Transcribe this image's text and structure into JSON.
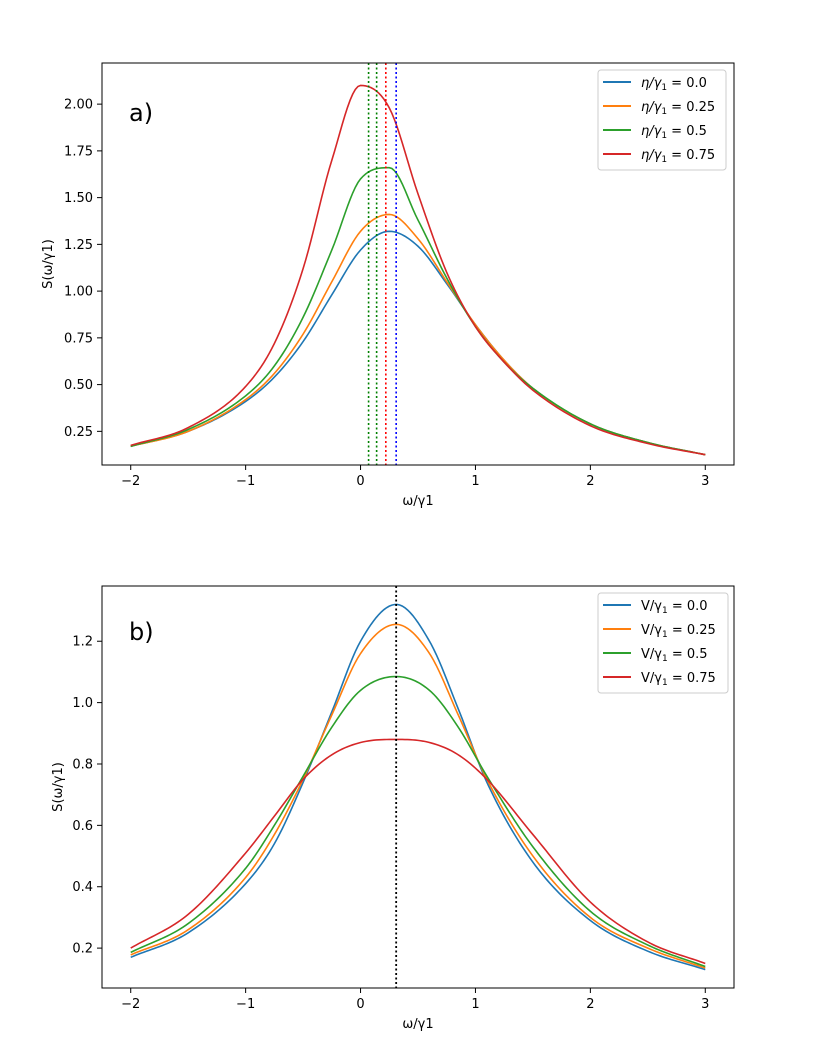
{
  "chart_data": [
    {
      "type": "line",
      "panel_label": "a)",
      "xlabel": "ω/γ1",
      "ylabel": "S(ω/γ1)",
      "xlim": [
        -2.25,
        3.25
      ],
      "ylim": [
        0.07,
        2.22
      ],
      "xticks": [
        -2,
        -1,
        0,
        1,
        2,
        3
      ],
      "xtick_labels": [
        "−2",
        "−1",
        "0",
        "1",
        "2",
        "3"
      ],
      "yticks": [
        0.25,
        0.5,
        0.75,
        1.0,
        1.25,
        1.5,
        1.75,
        2.0
      ],
      "ytick_labels": [
        "0.25",
        "0.50",
        "0.75",
        "1.00",
        "1.25",
        "1.50",
        "1.75",
        "2.00"
      ],
      "legend_position": "top-right",
      "series": [
        {
          "name_sym": "η/γ",
          "name_sub": "1",
          "name_val": " = 0.0",
          "color": "#1f77b4",
          "vline_color": "#0000ff",
          "peak_x": 0.31,
          "x": [
            -2,
            -1.5,
            -1,
            -0.75,
            -0.5,
            -0.25,
            0,
            0.25,
            0.5,
            0.75,
            1,
            1.25,
            1.5,
            2,
            2.5,
            3
          ],
          "y": [
            0.17,
            0.25,
            0.41,
            0.54,
            0.73,
            0.98,
            1.22,
            1.32,
            1.24,
            1.04,
            0.82,
            0.63,
            0.48,
            0.29,
            0.19,
            0.125
          ]
        },
        {
          "name_sym": "η/γ",
          "name_sub": "1",
          "name_val": " = 0.25",
          "color": "#ff7f0e",
          "vline_color": "#ff0000",
          "peak_x": 0.22,
          "x": [
            -2,
            -1.5,
            -1,
            -0.75,
            -0.5,
            -0.25,
            0,
            0.25,
            0.5,
            0.75,
            1,
            1.25,
            1.5,
            2,
            2.5,
            3
          ],
          "y": [
            0.17,
            0.25,
            0.42,
            0.56,
            0.77,
            1.05,
            1.32,
            1.41,
            1.28,
            1.05,
            0.82,
            0.63,
            0.48,
            0.29,
            0.19,
            0.125
          ]
        },
        {
          "name_sym": "η/γ",
          "name_sub": "1",
          "name_val": " = 0.5",
          "color": "#2ca02c",
          "vline_color": "#008000",
          "peak_x": 0.14,
          "x": [
            -2,
            -1.5,
            -1,
            -0.75,
            -0.5,
            -0.25,
            0,
            0.25,
            0.5,
            0.75,
            1,
            1.25,
            1.5,
            2,
            2.5,
            3
          ],
          "y": [
            0.17,
            0.26,
            0.44,
            0.6,
            0.86,
            1.22,
            1.6,
            1.66,
            1.38,
            1.07,
            0.81,
            0.62,
            0.48,
            0.29,
            0.19,
            0.125
          ]
        },
        {
          "name_sym": "η/γ",
          "name_sub": "1",
          "name_val": " = 0.75",
          "color": "#d62728",
          "vline_color": "#008000",
          "peak_x": 0.07,
          "x": [
            -2,
            -1.5,
            -1,
            -0.75,
            -0.5,
            -0.25,
            0,
            0.25,
            0.5,
            0.75,
            1,
            1.25,
            1.5,
            2,
            2.5,
            3
          ],
          "y": [
            0.175,
            0.27,
            0.49,
            0.72,
            1.12,
            1.7,
            2.1,
            1.98,
            1.52,
            1.1,
            0.81,
            0.62,
            0.47,
            0.28,
            0.185,
            0.125
          ]
        }
      ]
    },
    {
      "type": "line",
      "panel_label": "b)",
      "xlabel": "ω/γ1",
      "ylabel": "S(ω/γ1)",
      "xlim": [
        -2.25,
        3.25
      ],
      "ylim": [
        0.07,
        1.38
      ],
      "xticks": [
        -2,
        -1,
        0,
        1,
        2,
        3
      ],
      "xtick_labels": [
        "−2",
        "−1",
        "0",
        "1",
        "2",
        "3"
      ],
      "yticks": [
        0.2,
        0.4,
        0.6,
        0.8,
        1.0,
        1.2
      ],
      "ytick_labels": [
        "0.2",
        "0.4",
        "0.6",
        "0.8",
        "1.0",
        "1.2"
      ],
      "legend_position": "top-right",
      "vline_x": 0.31,
      "vline_color": "#000000",
      "series": [
        {
          "name_sym": "V/γ",
          "name_sub": "1",
          "name_val": " = 0.0",
          "color": "#1f77b4",
          "x": [
            -2,
            -1.5,
            -1,
            -0.75,
            -0.5,
            -0.25,
            0,
            0.31,
            0.6,
            0.85,
            1.1,
            1.5,
            2,
            2.5,
            3
          ],
          "y": [
            0.17,
            0.25,
            0.41,
            0.54,
            0.74,
            0.97,
            1.2,
            1.32,
            1.2,
            0.98,
            0.74,
            0.48,
            0.29,
            0.19,
            0.13
          ]
        },
        {
          "name_sym": "V/γ",
          "name_sub": "1",
          "name_val": " = 0.25",
          "color": "#ff7f0e",
          "x": [
            -2,
            -1.5,
            -1,
            -0.75,
            -0.5,
            -0.25,
            0,
            0.31,
            0.6,
            0.85,
            1.1,
            1.5,
            2,
            2.5,
            3
          ],
          "y": [
            0.178,
            0.26,
            0.43,
            0.57,
            0.75,
            0.96,
            1.16,
            1.255,
            1.16,
            0.96,
            0.75,
            0.5,
            0.3,
            0.2,
            0.135
          ]
        },
        {
          "name_sym": "V/γ",
          "name_sub": "1",
          "name_val": " = 0.5",
          "color": "#2ca02c",
          "x": [
            -2,
            -1.5,
            -1,
            -0.75,
            -0.5,
            -0.25,
            0,
            0.31,
            0.6,
            0.85,
            1.1,
            1.5,
            2,
            2.5,
            3
          ],
          "y": [
            0.186,
            0.28,
            0.46,
            0.6,
            0.76,
            0.92,
            1.04,
            1.085,
            1.04,
            0.92,
            0.76,
            0.53,
            0.32,
            0.21,
            0.14
          ]
        },
        {
          "name_sym": "V/γ",
          "name_sub": "1",
          "name_val": " = 0.75",
          "color": "#d62728",
          "x": [
            -2,
            -1.5,
            -1,
            -0.75,
            -0.5,
            -0.25,
            0,
            0.31,
            0.6,
            0.85,
            1.1,
            1.5,
            2,
            2.5,
            3
          ],
          "y": [
            0.2,
            0.31,
            0.51,
            0.63,
            0.75,
            0.83,
            0.87,
            0.88,
            0.87,
            0.83,
            0.75,
            0.57,
            0.35,
            0.22,
            0.15
          ]
        }
      ]
    }
  ]
}
